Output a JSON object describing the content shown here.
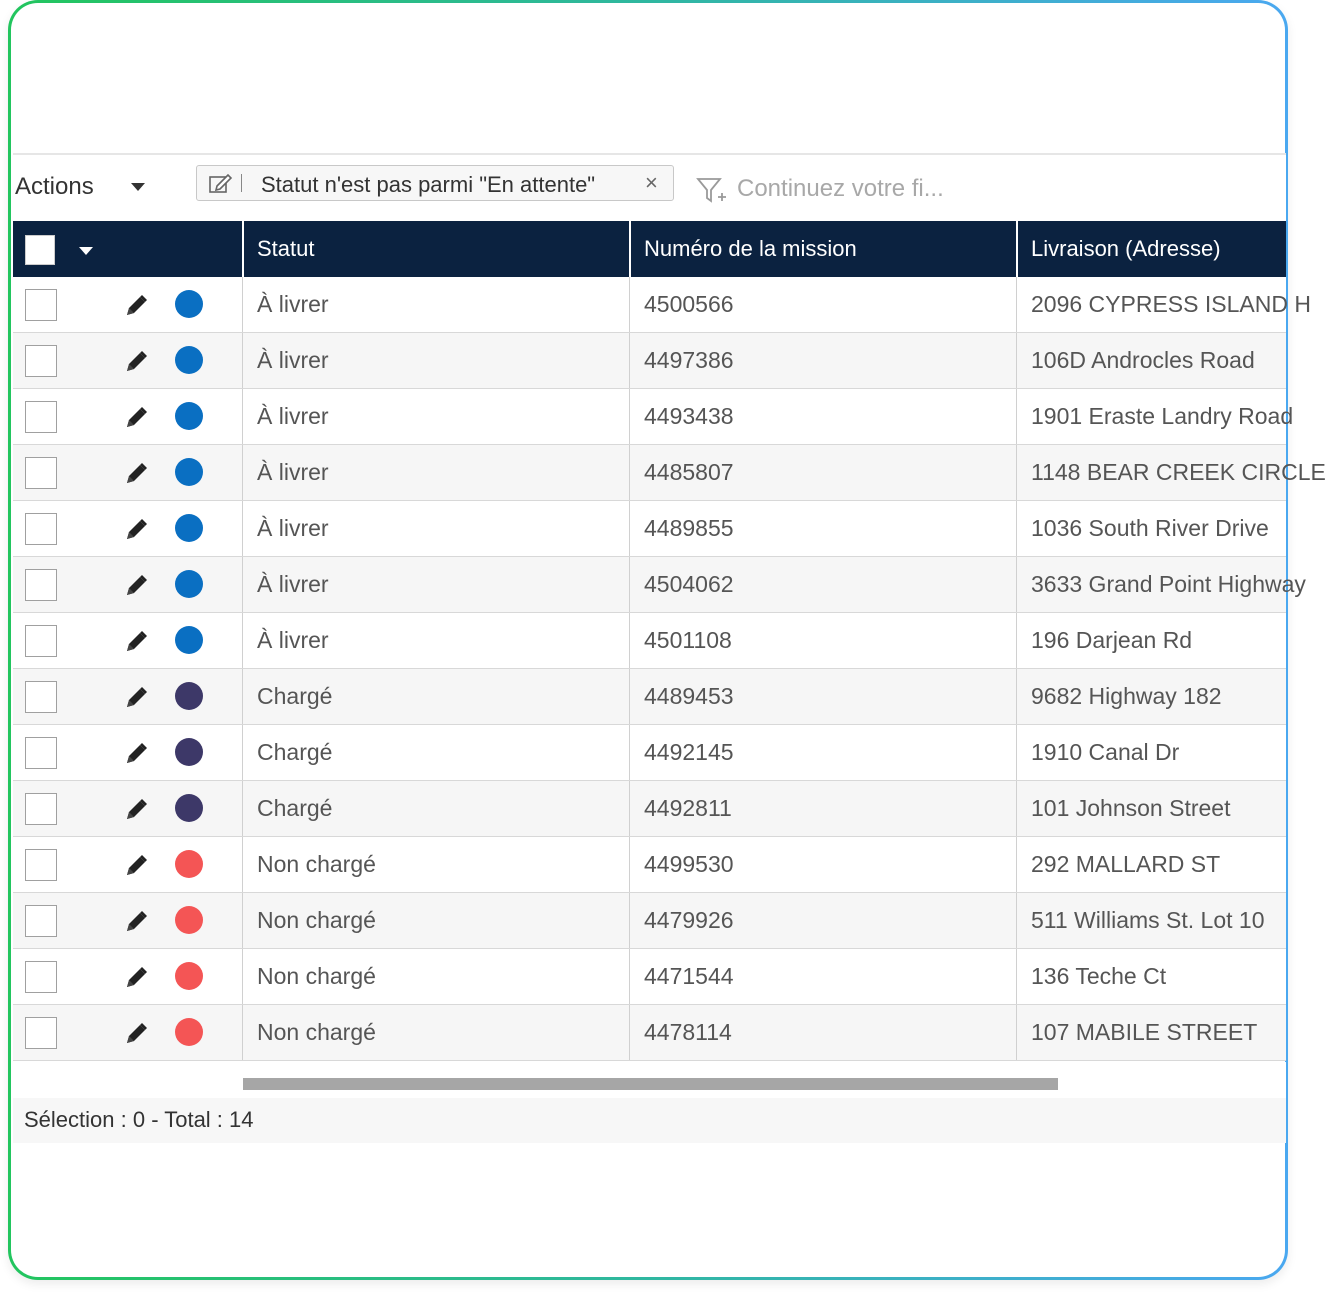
{
  "toolbar": {
    "actions_label": "Actions",
    "filter_chip_text": "Statut n'est pas parmi \"En attente\"",
    "filter_chip_close": "×",
    "filter_placeholder": "Continuez votre fi..."
  },
  "columns": {
    "status": "Statut",
    "mission": "Numéro de la mission",
    "address": "Livraison (Adresse)"
  },
  "status_colors": {
    "À livrer": "#0a6fc2",
    "Chargé": "#3d3868",
    "Non chargé": "#f45555"
  },
  "rows": [
    {
      "status": "À livrer",
      "mission": "4500566",
      "address": "2096 CYPRESS ISLAND H",
      "color": "#0a6fc2"
    },
    {
      "status": "À livrer",
      "mission": "4497386",
      "address": "106D Androcles Road",
      "color": "#0a6fc2"
    },
    {
      "status": "À livrer",
      "mission": "4493438",
      "address": "1901 Eraste Landry Road",
      "color": "#0a6fc2"
    },
    {
      "status": "À livrer",
      "mission": "4485807",
      "address": "1148 BEAR CREEK CIRCLE",
      "color": "#0a6fc2"
    },
    {
      "status": "À livrer",
      "mission": "4489855",
      "address": "1036 South River Drive",
      "color": "#0a6fc2"
    },
    {
      "status": "À livrer",
      "mission": "4504062",
      "address": "3633 Grand Point Highway",
      "color": "#0a6fc2"
    },
    {
      "status": "À livrer",
      "mission": "4501108",
      "address": "196 Darjean Rd",
      "color": "#0a6fc2"
    },
    {
      "status": "Chargé",
      "mission": "4489453",
      "address": "9682 Highway 182",
      "color": "#3d3868"
    },
    {
      "status": "Chargé",
      "mission": "4492145",
      "address": "1910 Canal Dr",
      "color": "#3d3868"
    },
    {
      "status": "Chargé",
      "mission": "4492811",
      "address": "101 Johnson Street",
      "color": "#3d3868"
    },
    {
      "status": "Non chargé",
      "mission": "4499530",
      "address": "292 MALLARD ST",
      "color": "#f45555"
    },
    {
      "status": "Non chargé",
      "mission": "4479926",
      "address": "511 Williams St. Lot 10",
      "color": "#f45555"
    },
    {
      "status": "Non chargé",
      "mission": "4471544",
      "address": "136 Teche Ct",
      "color": "#f45555"
    },
    {
      "status": "Non chargé",
      "mission": "4478114",
      "address": "107 MABILE STREET",
      "color": "#f45555"
    }
  ],
  "footer": {
    "summary": "Sélection : 0 - Total : 14"
  },
  "icons": {
    "row_edit": "pencil-icon",
    "row_status": "status-dot-icon",
    "filter": "filter-add-icon",
    "chip_edit": "edit-icon"
  }
}
